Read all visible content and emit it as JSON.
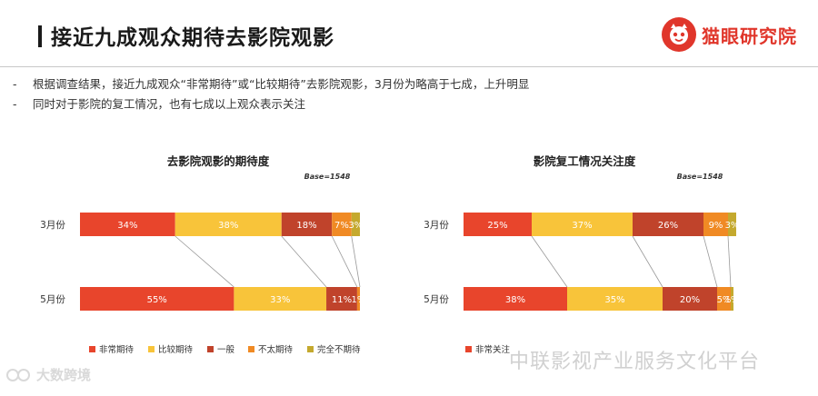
{
  "header": {
    "title": "接近九成观众期待去影院观影",
    "brand": "猫眼研究院",
    "brand_color": "#e0362b",
    "brand_icon": "cat-face-icon"
  },
  "bullets": [
    "根据调查结果，接近九成观众“非常期待”或“比较期待”去影院观影，3月份为略高于七成，上升明显",
    "同时对于影院的复工情况，也有七成以上观众表示关注"
  ],
  "watermarks": {
    "left": "大数跨境",
    "right": "中联影视产业服务文化平台"
  },
  "chart_data": [
    {
      "type": "bar",
      "stacked": true,
      "orientation": "horizontal",
      "title": "去影院观影的期待度",
      "base_label": "Base=1548",
      "categories": [
        "3月份",
        "5月份"
      ],
      "series": [
        {
          "name": "非常期待",
          "color": "#e8452c",
          "values": [
            34,
            55
          ],
          "labels": [
            "34%",
            "55%"
          ]
        },
        {
          "name": "比较期待",
          "color": "#f8c43a",
          "values": [
            38,
            33
          ],
          "labels": [
            "38%",
            "33%"
          ]
        },
        {
          "name": "一般",
          "color": "#c0432b",
          "values": [
            18,
            11
          ],
          "labels": [
            "18%",
            "11%"
          ]
        },
        {
          "name": "不太期待",
          "color": "#f08a24",
          "values": [
            7,
            1
          ],
          "labels": [
            "7%",
            "1%"
          ]
        },
        {
          "name": "完全不期待",
          "color": "#c4a92e",
          "values": [
            3,
            0
          ],
          "labels": [
            "3%",
            ""
          ]
        }
      ],
      "legend_position": "bottom"
    },
    {
      "type": "bar",
      "stacked": true,
      "orientation": "horizontal",
      "title": "影院复工情况关注度",
      "base_label": "Base=1548",
      "categories": [
        "3月份",
        "5月份"
      ],
      "series": [
        {
          "name": "非常关注",
          "color": "#e8452c",
          "values": [
            25,
            38
          ],
          "labels": [
            "25%",
            "38%"
          ]
        },
        {
          "name": "",
          "color": "#f8c43a",
          "values": [
            37,
            35
          ],
          "labels": [
            "37%",
            "35%"
          ]
        },
        {
          "name": "",
          "color": "#c0432b",
          "values": [
            26,
            20
          ],
          "labels": [
            "26%",
            "20%"
          ]
        },
        {
          "name": "",
          "color": "#f08a24",
          "values": [
            9,
            5
          ],
          "labels": [
            "9%",
            "5%"
          ]
        },
        {
          "name": "",
          "color": "#c4a92e",
          "values": [
            3,
            1
          ],
          "labels": [
            "3%",
            "1%"
          ]
        }
      ],
      "legend_position": "bottom"
    }
  ]
}
